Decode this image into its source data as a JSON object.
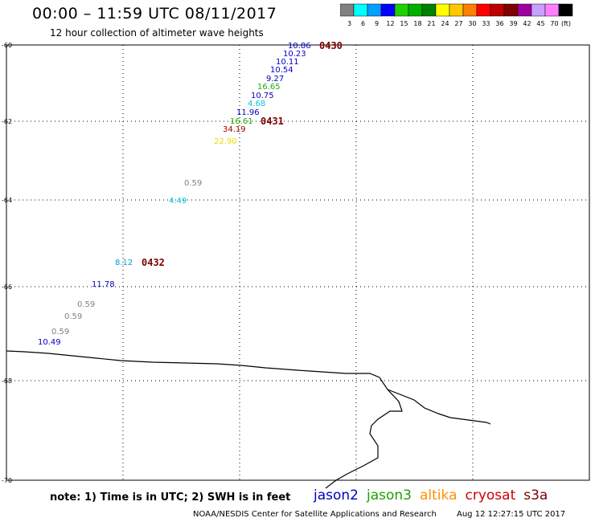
{
  "header": {
    "title": "00:00 – 11:59 UTC 08/11/2017",
    "subtitle": "12 hour collection of altimeter wave heights"
  },
  "colorbar": {
    "unit_label": "(ft)",
    "bins": [
      {
        "label": "3",
        "color": "#808080"
      },
      {
        "label": "6",
        "color": "#00ffff"
      },
      {
        "label": "9",
        "color": "#00a0ff"
      },
      {
        "label": "12",
        "color": "#0000ff"
      },
      {
        "label": "15",
        "color": "#20d000"
      },
      {
        "label": "18",
        "color": "#00b000"
      },
      {
        "label": "21",
        "color": "#008000"
      },
      {
        "label": "24",
        "color": "#ffff00"
      },
      {
        "label": "27",
        "color": "#ffc800"
      },
      {
        "label": "30",
        "color": "#ff8000"
      },
      {
        "label": "33",
        "color": "#ff0000"
      },
      {
        "label": "36",
        "color": "#c00000"
      },
      {
        "label": "39",
        "color": "#800000"
      },
      {
        "label": "42",
        "color": "#a000a0"
      },
      {
        "label": "45",
        "color": "#c8a0ff"
      },
      {
        "label": "70",
        "color": "#ff80ff"
      },
      {
        "label": "",
        "color": "#000000"
      }
    ]
  },
  "axes": {
    "lat_ticks": [
      "-60",
      "-62",
      "-64",
      "-66",
      "-68",
      "-70"
    ],
    "lon_ticks": [
      "60",
      "63",
      "66",
      "69",
      "72",
      "75"
    ]
  },
  "observations": [
    {
      "value": "10.86",
      "color": "#0000c0"
    },
    {
      "value": "10.23",
      "color": "#0000c0"
    },
    {
      "value": "10.11",
      "color": "#0000c0"
    },
    {
      "value": "10.54",
      "color": "#0000c0"
    },
    {
      "value": "9.27",
      "color": "#0000c0"
    },
    {
      "value": "16.65",
      "color": "#20b000"
    },
    {
      "value": "10.75",
      "color": "#0000c0"
    },
    {
      "value": "4.68",
      "color": "#00c8e0"
    },
    {
      "value": "11.96",
      "color": "#0000c0"
    },
    {
      "value": "16.61",
      "color": "#20b000"
    },
    {
      "value": "34.19",
      "color": "#a00000"
    },
    {
      "value": "22.90",
      "color": "#e8e000"
    },
    {
      "value": "0.59",
      "color": "#808080"
    },
    {
      "value": "4.49",
      "color": "#00c8e0"
    },
    {
      "value": "8.12",
      "color": "#00a0e0"
    },
    {
      "value": "11.78",
      "color": "#0000c0"
    },
    {
      "value": "0.59",
      "color": "#808080"
    },
    {
      "value": "0.59",
      "color": "#808080"
    },
    {
      "value": "0.59",
      "color": "#808080"
    },
    {
      "value": "10.49",
      "color": "#0000c0"
    }
  ],
  "time_markers": [
    {
      "label": "0430",
      "color": "#800000"
    },
    {
      "label": "0431",
      "color": "#800000"
    },
    {
      "label": "0432",
      "color": "#800000"
    }
  ],
  "footer": {
    "note": "note: 1) Time is in UTC; 2) SWH is in feet",
    "credit": "NOAA/NESDIS Center for Satellite Applications and Research",
    "timestamp": "Aug 12 12:27:15 UTC 2017",
    "legend": [
      {
        "label": "jason2",
        "color": "#0000c0"
      },
      {
        "label": "jason3",
        "color": "#20a000"
      },
      {
        "label": "altika",
        "color": "#ff9000"
      },
      {
        "label": "cryosat",
        "color": "#d00000"
      },
      {
        "label": "s3a",
        "color": "#800000"
      }
    ]
  }
}
